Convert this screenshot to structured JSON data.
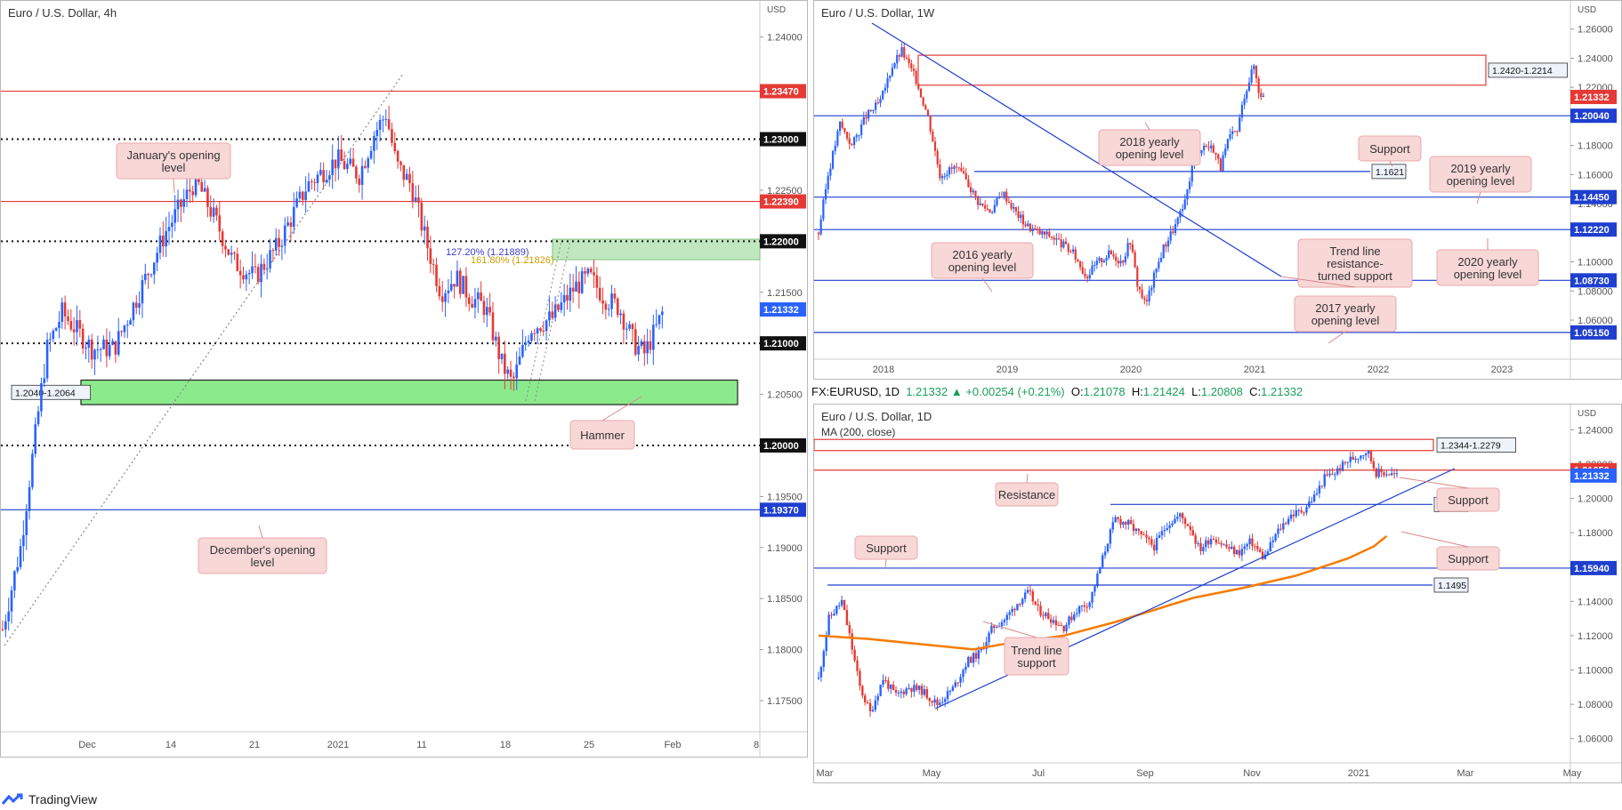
{
  "brand": {
    "name": "TradingView"
  },
  "infobar": {
    "symbol": "FX:EURUSD, 1D",
    "last": "1.21332",
    "change": "+0.00254 (+0.21%)",
    "o_label": "O:",
    "o": "1.21078",
    "h_label": "H:",
    "h": "1.21424",
    "l_label": "L:",
    "l": "1.20808",
    "c_label": "C:",
    "c": "1.21332"
  },
  "colors": {
    "up": "#2962ff",
    "down": "#e53935",
    "zone_green": "#7ee87e",
    "zone_green_light": "#b9e6b9",
    "resistance": "#e53935",
    "support": "#1e3fcf",
    "ma": "#f57c00",
    "callout_bg": "#f8d7d7",
    "callout_border": "#e8a8a8"
  },
  "chart_data": [
    {
      "id": "h4",
      "type": "candlestick",
      "title": "Euro / U.S. Dollar, 4h",
      "currency": "USD",
      "ylim": [
        1.173,
        1.2425
      ],
      "y_ticks": [
        "1.24000",
        "1.23500",
        "1.23000",
        "1.22500",
        "1.22000",
        "1.21500",
        "1.21000",
        "1.20500",
        "1.20000",
        "1.19500",
        "1.19000",
        "1.18500",
        "1.18000",
        "1.17500"
      ],
      "x_ticks": [
        "Dec",
        "14",
        "21",
        "2021",
        "11",
        "18",
        "25",
        "Feb",
        "8"
      ],
      "price_path": [
        [
          0,
          1.182
        ],
        [
          6,
          1.186
        ],
        [
          12,
          1.19
        ],
        [
          17,
          1.1955
        ],
        [
          22,
          1.201
        ],
        [
          26,
          1.2055
        ],
        [
          30,
          1.2095
        ],
        [
          40,
          1.213
        ],
        [
          60,
          1.2095
        ],
        [
          75,
          1.2095
        ],
        [
          92,
          1.215
        ],
        [
          110,
          1.221
        ],
        [
          130,
          1.226
        ],
        [
          145,
          1.2215
        ],
        [
          155,
          1.218
        ],
        [
          170,
          1.2165
        ],
        [
          185,
          1.2195
        ],
        [
          205,
          1.2255
        ],
        [
          225,
          1.228
        ],
        [
          240,
          1.2265
        ],
        [
          250,
          1.2305
        ],
        [
          258,
          1.2325
        ],
        [
          265,
          1.2275
        ],
        [
          275,
          1.2255
        ],
        [
          285,
          1.22
        ],
        [
          295,
          1.215
        ],
        [
          305,
          1.2165
        ],
        [
          315,
          1.2145
        ],
        [
          325,
          1.2135
        ],
        [
          336,
          1.208
        ],
        [
          343,
          1.206
        ],
        [
          355,
          1.2115
        ],
        [
          370,
          1.2125
        ],
        [
          385,
          1.2155
        ],
        [
          395,
          1.2165
        ],
        [
          405,
          1.2145
        ],
        [
          415,
          1.2135
        ],
        [
          425,
          1.21
        ],
        [
          432,
          1.209
        ],
        [
          440,
          1.2115
        ],
        [
          445,
          1.2133
        ]
      ],
      "levels": [
        {
          "price": 1.2347,
          "label": "1.23470",
          "style": "red"
        },
        {
          "price": 1.23,
          "label": "1.23000",
          "style": "dotted"
        },
        {
          "price": 1.2239,
          "label": "1.22390",
          "style": "red"
        },
        {
          "price": 1.22,
          "label": "1.22000",
          "style": "dotted"
        },
        {
          "price": 1.21332,
          "label": "1.21332",
          "style": "current"
        },
        {
          "price": 1.21,
          "label": "1.21000",
          "style": "dotted"
        },
        {
          "price": 1.2,
          "label": "1.20000",
          "style": "dotted"
        },
        {
          "price": 1.1937,
          "label": "1.19370",
          "style": "blue"
        }
      ],
      "zones": [
        {
          "low": 1.204,
          "high": 1.2064,
          "label": "1.2040-1.2064",
          "color": "green"
        },
        {
          "low": 1.2182,
          "high": 1.2202,
          "label": "",
          "color": "lightgreen"
        }
      ],
      "fib_labels": [
        "127.20% (1.21889)",
        "161.80% (1.21826)"
      ],
      "annotations": [
        "January's opening level",
        "Hammer",
        "December's opening level"
      ]
    },
    {
      "id": "w1",
      "type": "candlestick",
      "title": "Euro / U.S. Dollar, 1W",
      "currency": "USD",
      "ylim": [
        1.038,
        1.272
      ],
      "y_ticks": [
        "1.26000",
        "1.24000",
        "1.22000",
        "1.20000",
        "1.18000",
        "1.16000",
        "1.14000",
        "1.12000",
        "1.10000",
        "1.08000",
        "1.06000"
      ],
      "x_ticks": [
        "2018",
        "2019",
        "2020",
        "2021",
        "2022",
        "2023"
      ],
      "price_path": [
        [
          0,
          1.12
        ],
        [
          8,
          1.16
        ],
        [
          18,
          1.195
        ],
        [
          28,
          1.18
        ],
        [
          40,
          1.2
        ],
        [
          52,
          1.21
        ],
        [
          62,
          1.235
        ],
        [
          70,
          1.245
        ],
        [
          82,
          1.225
        ],
        [
          92,
          1.2
        ],
        [
          102,
          1.16
        ],
        [
          115,
          1.165
        ],
        [
          125,
          1.155
        ],
        [
          135,
          1.14
        ],
        [
          145,
          1.135
        ],
        [
          155,
          1.148
        ],
        [
          165,
          1.135
        ],
        [
          175,
          1.125
        ],
        [
          185,
          1.12
        ],
        [
          195,
          1.118
        ],
        [
          205,
          1.112
        ],
        [
          215,
          1.105
        ],
        [
          225,
          1.09
        ],
        [
          235,
          1.1
        ],
        [
          245,
          1.106
        ],
        [
          255,
          1.1
        ],
        [
          262,
          1.115
        ],
        [
          268,
          1.085
        ],
        [
          275,
          1.07
        ],
        [
          282,
          1.09
        ],
        [
          290,
          1.11
        ],
        [
          300,
          1.125
        ],
        [
          308,
          1.14
        ],
        [
          316,
          1.175
        ],
        [
          324,
          1.18
        ],
        [
          332,
          1.178
        ],
        [
          338,
          1.165
        ],
        [
          345,
          1.185
        ],
        [
          352,
          1.19
        ],
        [
          358,
          1.215
        ],
        [
          362,
          1.225
        ],
        [
          366,
          1.235
        ],
        [
          370,
          1.218
        ],
        [
          374,
          1.2133
        ]
      ],
      "levels": [
        {
          "price": 1.2004,
          "label": "1.20040",
          "style": "blue"
        },
        {
          "price": 1.1445,
          "label": "1.14450",
          "style": "blue"
        },
        {
          "price": 1.1222,
          "label": "1.12220",
          "style": "blue"
        },
        {
          "price": 1.0873,
          "label": "1.08730",
          "style": "blue"
        },
        {
          "price": 1.0515,
          "label": "1.05150",
          "style": "blue"
        }
      ],
      "current": {
        "price": 1.21332,
        "label": "1.21332"
      },
      "zones": [
        {
          "low": 1.2214,
          "high": 1.242,
          "label": "1.2420-1.2214"
        }
      ],
      "support_label": "1.1621",
      "annotations": [
        "2018 yearly opening level",
        "Support",
        "2019 yearly opening level",
        "Trend line resistance-turned support",
        "2016 yearly opening level",
        "2020 yearly opening level",
        "2017 yearly opening level"
      ]
    },
    {
      "id": "d1",
      "type": "candlestick",
      "title": "Euro / U.S. Dollar, 1D",
      "ma_label": "MA (200, close)",
      "currency": "USD",
      "ylim": [
        1.05,
        1.2485
      ],
      "y_ticks": [
        "1.24000",
        "1.22000",
        "1.20000",
        "1.18000",
        "1.16000",
        "1.14000",
        "1.12000",
        "1.10000",
        "1.08000",
        "1.06000"
      ],
      "x_ticks": [
        "Mar",
        "May",
        "Jul",
        "Sep",
        "Nov",
        "2021",
        "Mar",
        "May"
      ],
      "price_path": [
        [
          0,
          1.095
        ],
        [
          8,
          1.13
        ],
        [
          18,
          1.14
        ],
        [
          24,
          1.12
        ],
        [
          32,
          1.09
        ],
        [
          40,
          1.075
        ],
        [
          50,
          1.095
        ],
        [
          60,
          1.085
        ],
        [
          70,
          1.09
        ],
        [
          80,
          1.088
        ],
        [
          92,
          1.08
        ],
        [
          105,
          1.09
        ],
        [
          115,
          1.105
        ],
        [
          125,
          1.11
        ],
        [
          135,
          1.125
        ],
        [
          145,
          1.13
        ],
        [
          155,
          1.14
        ],
        [
          163,
          1.145
        ],
        [
          170,
          1.135
        ],
        [
          180,
          1.13
        ],
        [
          190,
          1.125
        ],
        [
          200,
          1.135
        ],
        [
          210,
          1.14
        ],
        [
          215,
          1.152
        ],
        [
          220,
          1.165
        ],
        [
          225,
          1.178
        ],
        [
          230,
          1.188
        ],
        [
          240,
          1.185
        ],
        [
          250,
          1.178
        ],
        [
          260,
          1.172
        ],
        [
          270,
          1.185
        ],
        [
          280,
          1.19
        ],
        [
          288,
          1.183
        ],
        [
          295,
          1.17
        ],
        [
          305,
          1.178
        ],
        [
          315,
          1.172
        ],
        [
          325,
          1.168
        ],
        [
          335,
          1.175
        ],
        [
          345,
          1.165
        ],
        [
          355,
          1.18
        ],
        [
          365,
          1.19
        ],
        [
          375,
          1.193
        ],
        [
          385,
          1.202
        ],
        [
          392,
          1.212
        ],
        [
          400,
          1.215
        ],
        [
          410,
          1.222
        ],
        [
          418,
          1.225
        ],
        [
          425,
          1.228
        ],
        [
          432,
          1.215
        ],
        [
          440,
          1.215
        ],
        [
          448,
          1.2133
        ]
      ],
      "ma_path": [
        [
          0,
          1.12
        ],
        [
          40,
          1.118
        ],
        [
          80,
          1.115
        ],
        [
          120,
          1.112
        ],
        [
          150,
          1.116
        ],
        [
          190,
          1.12
        ],
        [
          230,
          1.128
        ],
        [
          260,
          1.135
        ],
        [
          290,
          1.142
        ],
        [
          330,
          1.148
        ],
        [
          370,
          1.155
        ],
        [
          410,
          1.165
        ],
        [
          430,
          1.172
        ],
        [
          440,
          1.178
        ]
      ],
      "levels": [
        {
          "price": 1.2165,
          "label": "1.21650",
          "style": "red"
        },
        {
          "price": 1.1594,
          "label": "1.15940",
          "style": "blue"
        }
      ],
      "current": {
        "price": 1.21332,
        "label": "1.21332"
      },
      "zones": [
        {
          "low": 1.2279,
          "high": 1.2344,
          "label": "1.2344-1.2279"
        }
      ],
      "support_lines": [
        {
          "price": 1.1965,
          "label": "1.1965"
        },
        {
          "price": 1.1495,
          "label": "1.1495"
        }
      ],
      "annotations": [
        "Resistance",
        "Support",
        "Support",
        "Support",
        "Trend line support"
      ]
    }
  ]
}
